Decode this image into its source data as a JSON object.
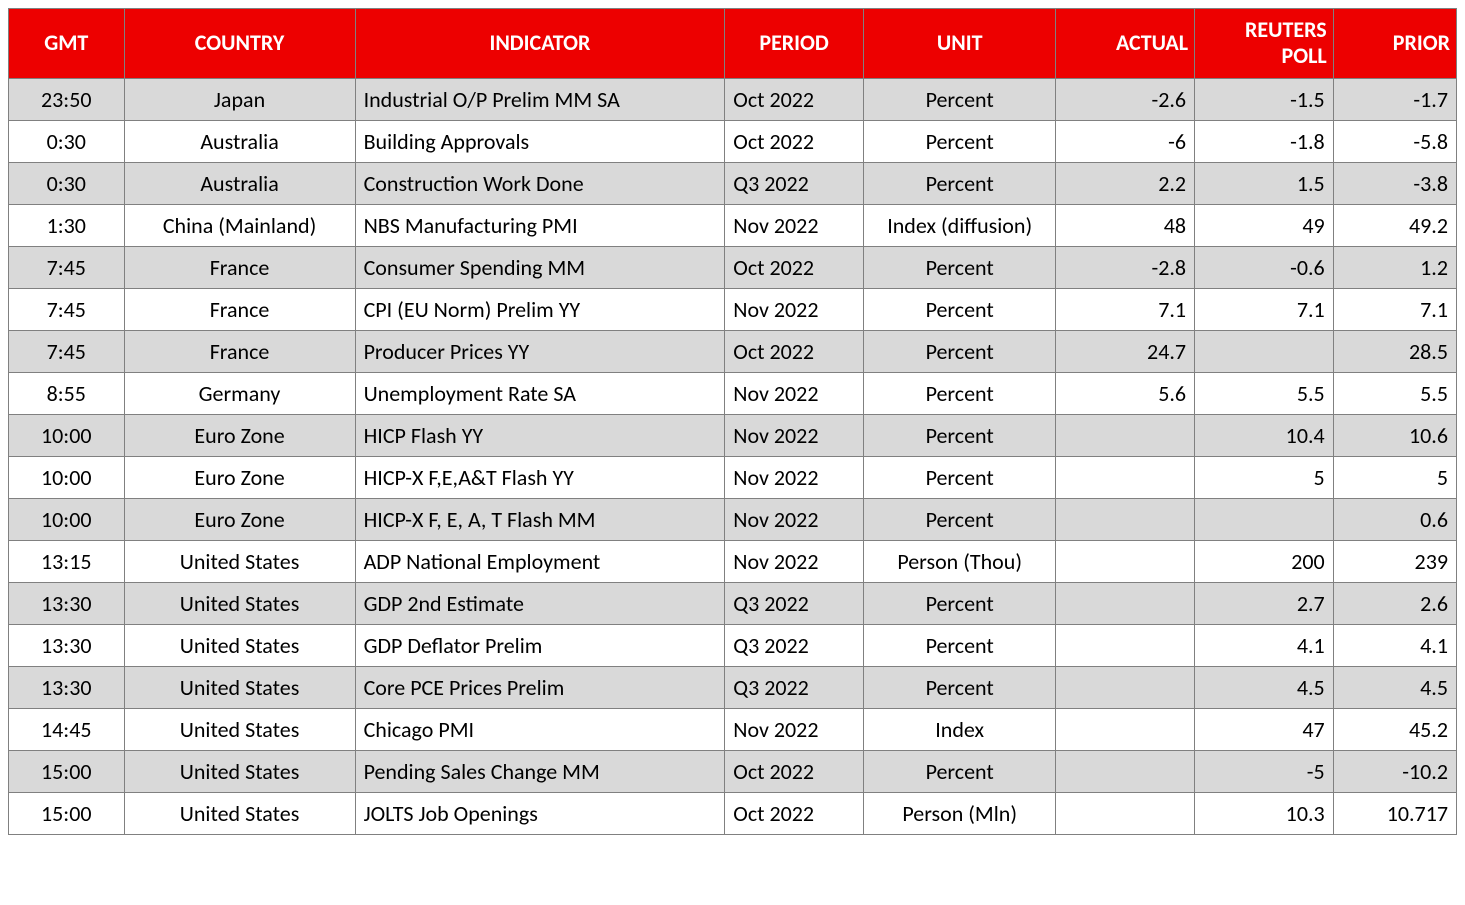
{
  "table": {
    "header_bg": "#ed0000",
    "header_fg": "#ffffff",
    "row_even_bg": "#d9d9d9",
    "row_odd_bg": "#ffffff",
    "border_color": "#808080",
    "font_family": "Calibri",
    "header_fontsize": 22,
    "cell_fontsize": 22,
    "columns": [
      {
        "key": "gmt",
        "label": "GMT",
        "align": "center"
      },
      {
        "key": "country",
        "label": "COUNTRY",
        "align": "center"
      },
      {
        "key": "indicator",
        "label": "INDICATOR",
        "align": "left"
      },
      {
        "key": "period",
        "label": "PERIOD",
        "align": "left"
      },
      {
        "key": "unit",
        "label": "UNIT",
        "align": "center"
      },
      {
        "key": "actual",
        "label": "ACTUAL",
        "align": "right"
      },
      {
        "key": "poll",
        "label": "REUTERS POLL",
        "align": "right"
      },
      {
        "key": "prior",
        "label": "PRIOR",
        "align": "right"
      }
    ],
    "rows": [
      {
        "gmt": "23:50",
        "country": "Japan",
        "indicator": "Industrial O/P Prelim MM SA",
        "period": "Oct 2022",
        "unit": "Percent",
        "actual": "-2.6",
        "poll": "-1.5",
        "prior": "-1.7"
      },
      {
        "gmt": "0:30",
        "country": "Australia",
        "indicator": "Building Approvals",
        "period": "Oct 2022",
        "unit": "Percent",
        "actual": "-6",
        "poll": "-1.8",
        "prior": "-5.8"
      },
      {
        "gmt": "0:30",
        "country": "Australia",
        "indicator": "Construction Work Done",
        "period": "Q3 2022",
        "unit": "Percent",
        "actual": "2.2",
        "poll": "1.5",
        "prior": "-3.8"
      },
      {
        "gmt": "1:30",
        "country": "China (Mainland)",
        "indicator": "NBS Manufacturing PMI",
        "period": "Nov 2022",
        "unit": "Index (diffusion)",
        "actual": "48",
        "poll": "49",
        "prior": "49.2"
      },
      {
        "gmt": "7:45",
        "country": "France",
        "indicator": "Consumer Spending MM",
        "period": "Oct 2022",
        "unit": "Percent",
        "actual": "-2.8",
        "poll": "-0.6",
        "prior": "1.2"
      },
      {
        "gmt": "7:45",
        "country": "France",
        "indicator": "CPI (EU Norm) Prelim YY",
        "period": "Nov 2022",
        "unit": "Percent",
        "actual": "7.1",
        "poll": "7.1",
        "prior": "7.1"
      },
      {
        "gmt": "7:45",
        "country": "France",
        "indicator": "Producer Prices YY",
        "period": "Oct 2022",
        "unit": "Percent",
        "actual": "24.7",
        "poll": "",
        "prior": "28.5"
      },
      {
        "gmt": "8:55",
        "country": "Germany",
        "indicator": "Unemployment Rate SA",
        "period": "Nov 2022",
        "unit": "Percent",
        "actual": "5.6",
        "poll": "5.5",
        "prior": "5.5"
      },
      {
        "gmt": "10:00",
        "country": "Euro Zone",
        "indicator": "HICP Flash YY",
        "period": "Nov 2022",
        "unit": "Percent",
        "actual": "",
        "poll": "10.4",
        "prior": "10.6"
      },
      {
        "gmt": "10:00",
        "country": "Euro Zone",
        "indicator": "HICP-X F,E,A&T Flash YY",
        "period": "Nov 2022",
        "unit": "Percent",
        "actual": "",
        "poll": "5",
        "prior": "5"
      },
      {
        "gmt": "10:00",
        "country": "Euro Zone",
        "indicator": "HICP-X F, E, A, T Flash MM",
        "period": "Nov 2022",
        "unit": "Percent",
        "actual": "",
        "poll": "",
        "prior": "0.6"
      },
      {
        "gmt": "13:15",
        "country": "United States",
        "indicator": "ADP National Employment",
        "period": "Nov 2022",
        "unit": "Person (Thou)",
        "actual": "",
        "poll": "200",
        "prior": "239"
      },
      {
        "gmt": "13:30",
        "country": "United States",
        "indicator": "GDP 2nd Estimate",
        "period": "Q3 2022",
        "unit": "Percent",
        "actual": "",
        "poll": "2.7",
        "prior": "2.6"
      },
      {
        "gmt": "13:30",
        "country": "United States",
        "indicator": "GDP Deflator Prelim",
        "period": "Q3 2022",
        "unit": "Percent",
        "actual": "",
        "poll": "4.1",
        "prior": "4.1"
      },
      {
        "gmt": "13:30",
        "country": "United States",
        "indicator": "Core PCE Prices Prelim",
        "period": "Q3 2022",
        "unit": "Percent",
        "actual": "",
        "poll": "4.5",
        "prior": "4.5"
      },
      {
        "gmt": "14:45",
        "country": "United States",
        "indicator": "Chicago PMI",
        "period": "Nov 2022",
        "unit": "Index",
        "actual": "",
        "poll": "47",
        "prior": "45.2"
      },
      {
        "gmt": "15:00",
        "country": "United States",
        "indicator": "Pending Sales Change MM",
        "period": "Oct 2022",
        "unit": "Percent",
        "actual": "",
        "poll": "-5",
        "prior": "-10.2"
      },
      {
        "gmt": "15:00",
        "country": "United States",
        "indicator": "JOLTS Job Openings",
        "period": "Oct 2022",
        "unit": "Person (Mln)",
        "actual": "",
        "poll": "10.3",
        "prior": "10.717"
      }
    ]
  }
}
